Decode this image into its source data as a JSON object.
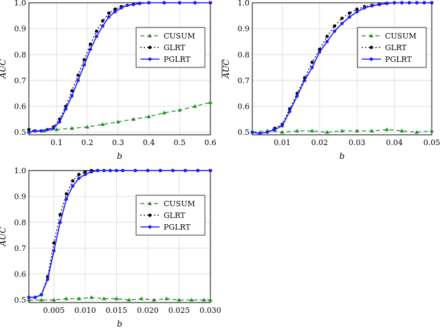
{
  "colors": {
    "cusum": "#1f8c1f",
    "glrt": "#000000",
    "pglrt": "#1a1aff",
    "grid": "#d9d9d9"
  },
  "chart_data": [
    {
      "type": "line",
      "xlabel": "b",
      "ylabel": "AUC",
      "xlim": [
        0.01,
        0.6
      ],
      "ylim": [
        0.49,
        1.0
      ],
      "xticks": [
        "0.1",
        "0.2",
        "0.3",
        "0.4",
        "0.5",
        "0.6"
      ],
      "yticks": [
        "0.5",
        "0.6",
        "0.7",
        "0.8",
        "0.9",
        "1.0"
      ],
      "legend_position": "right",
      "grid": true,
      "series": [
        {
          "name": "CUSUM",
          "x": [
            0.01,
            0.06,
            0.1,
            0.15,
            0.2,
            0.25,
            0.3,
            0.35,
            0.4,
            0.45,
            0.5,
            0.55,
            0.6
          ],
          "y": [
            0.5,
            0.505,
            0.51,
            0.515,
            0.52,
            0.53,
            0.54,
            0.55,
            0.56,
            0.575,
            0.585,
            0.6,
            0.615
          ]
        },
        {
          "name": "GLRT",
          "x": [
            0.01,
            0.03,
            0.05,
            0.07,
            0.09,
            0.11,
            0.13,
            0.15,
            0.17,
            0.19,
            0.21,
            0.23,
            0.25,
            0.27,
            0.29,
            0.31,
            0.33,
            0.35,
            0.37,
            0.4,
            0.45,
            0.5,
            0.55,
            0.6
          ],
          "y": [
            0.51,
            0.505,
            0.505,
            0.51,
            0.52,
            0.55,
            0.6,
            0.66,
            0.72,
            0.78,
            0.84,
            0.89,
            0.93,
            0.96,
            0.975,
            0.985,
            0.99,
            0.995,
            0.998,
            1.0,
            1.0,
            1.0,
            1.0,
            1.0
          ]
        },
        {
          "name": "PGLRT",
          "x": [
            0.01,
            0.03,
            0.05,
            0.07,
            0.09,
            0.11,
            0.13,
            0.15,
            0.17,
            0.19,
            0.21,
            0.23,
            0.25,
            0.27,
            0.29,
            0.31,
            0.33,
            0.35,
            0.37,
            0.4,
            0.45,
            0.5,
            0.55,
            0.6
          ],
          "y": [
            0.5,
            0.505,
            0.505,
            0.51,
            0.515,
            0.54,
            0.59,
            0.64,
            0.7,
            0.76,
            0.82,
            0.87,
            0.91,
            0.945,
            0.965,
            0.98,
            0.99,
            0.993,
            0.997,
            1.0,
            1.0,
            1.0,
            1.0,
            1.0
          ]
        }
      ]
    },
    {
      "type": "line",
      "xlabel": "b",
      "ylabel": "AUC",
      "xlim": [
        0.002,
        0.05
      ],
      "ylim": [
        0.49,
        1.0
      ],
      "xticks": [
        "0.01",
        "0.02",
        "0.03",
        "0.04",
        "0.05"
      ],
      "yticks": [
        "0.5",
        "0.6",
        "0.7",
        "0.8",
        "0.9",
        "1.0"
      ],
      "legend_position": "right",
      "grid": true,
      "series": [
        {
          "name": "CUSUM",
          "x": [
            0.002,
            0.006,
            0.01,
            0.014,
            0.018,
            0.022,
            0.026,
            0.03,
            0.034,
            0.038,
            0.042,
            0.046,
            0.05
          ],
          "y": [
            0.5,
            0.505,
            0.5,
            0.505,
            0.505,
            0.5,
            0.505,
            0.505,
            0.505,
            0.51,
            0.505,
            0.5,
            0.505
          ]
        },
        {
          "name": "GLRT",
          "x": [
            0.002,
            0.004,
            0.006,
            0.008,
            0.01,
            0.012,
            0.014,
            0.016,
            0.018,
            0.02,
            0.022,
            0.024,
            0.026,
            0.028,
            0.03,
            0.032,
            0.034,
            0.036,
            0.038,
            0.04,
            0.042,
            0.044,
            0.046,
            0.048,
            0.05
          ],
          "y": [
            0.5,
            0.495,
            0.5,
            0.515,
            0.53,
            0.59,
            0.65,
            0.71,
            0.77,
            0.82,
            0.87,
            0.91,
            0.94,
            0.96,
            0.975,
            0.985,
            0.99,
            0.995,
            0.998,
            1.0,
            1.0,
            1.0,
            1.0,
            1.0,
            1.0
          ]
        },
        {
          "name": "PGLRT",
          "x": [
            0.002,
            0.004,
            0.006,
            0.008,
            0.01,
            0.012,
            0.014,
            0.016,
            0.018,
            0.02,
            0.022,
            0.024,
            0.026,
            0.028,
            0.03,
            0.032,
            0.034,
            0.036,
            0.038,
            0.04,
            0.042,
            0.044,
            0.046,
            0.048,
            0.05
          ],
          "y": [
            0.5,
            0.495,
            0.5,
            0.51,
            0.525,
            0.58,
            0.64,
            0.7,
            0.75,
            0.81,
            0.85,
            0.89,
            0.92,
            0.945,
            0.965,
            0.98,
            0.988,
            0.993,
            0.997,
            1.0,
            1.0,
            1.0,
            1.0,
            1.0,
            1.0
          ]
        }
      ]
    },
    {
      "type": "line",
      "xlabel": "b",
      "ylabel": "AUC",
      "xlim": [
        0.001,
        0.03
      ],
      "ylim": [
        0.49,
        1.0
      ],
      "xticks": [
        "0.005",
        "0.010",
        "0.015",
        "0.020",
        "0.025",
        "0.030"
      ],
      "yticks": [
        "0.5",
        "0.6",
        "0.7",
        "0.8",
        "0.9",
        "1.0"
      ],
      "legend_position": "right",
      "grid": true,
      "series": [
        {
          "name": "CUSUM",
          "x": [
            0.001,
            0.003,
            0.005,
            0.007,
            0.009,
            0.011,
            0.013,
            0.015,
            0.017,
            0.019,
            0.021,
            0.023,
            0.025,
            0.027,
            0.029,
            0.03
          ],
          "y": [
            0.5,
            0.5,
            0.5,
            0.505,
            0.505,
            0.51,
            0.505,
            0.505,
            0.5,
            0.505,
            0.5,
            0.505,
            0.5,
            0.5,
            0.5,
            0.5
          ]
        },
        {
          "name": "GLRT",
          "x": [
            0.001,
            0.002,
            0.003,
            0.004,
            0.005,
            0.006,
            0.007,
            0.008,
            0.009,
            0.01,
            0.011,
            0.012,
            0.013,
            0.014,
            0.015,
            0.016,
            0.018,
            0.02,
            0.022,
            0.024,
            0.026,
            0.028,
            0.03
          ],
          "y": [
            0.51,
            0.51,
            0.52,
            0.59,
            0.72,
            0.83,
            0.91,
            0.96,
            0.985,
            0.995,
            1.0,
            1.0,
            1.0,
            1.0,
            1.0,
            1.0,
            1.0,
            1.0,
            1.0,
            1.0,
            1.0,
            1.0,
            1.0
          ]
        },
        {
          "name": "PGLRT",
          "x": [
            0.001,
            0.002,
            0.003,
            0.004,
            0.005,
            0.006,
            0.007,
            0.008,
            0.009,
            0.01,
            0.011,
            0.012,
            0.013,
            0.014,
            0.015,
            0.016,
            0.018,
            0.02,
            0.022,
            0.024,
            0.026,
            0.028,
            0.03
          ],
          "y": [
            0.51,
            0.51,
            0.52,
            0.58,
            0.69,
            0.8,
            0.89,
            0.94,
            0.97,
            0.985,
            0.995,
            1.0,
            1.0,
            1.0,
            1.0,
            1.0,
            1.0,
            1.0,
            1.0,
            1.0,
            1.0,
            1.0,
            1.0
          ]
        }
      ]
    }
  ]
}
